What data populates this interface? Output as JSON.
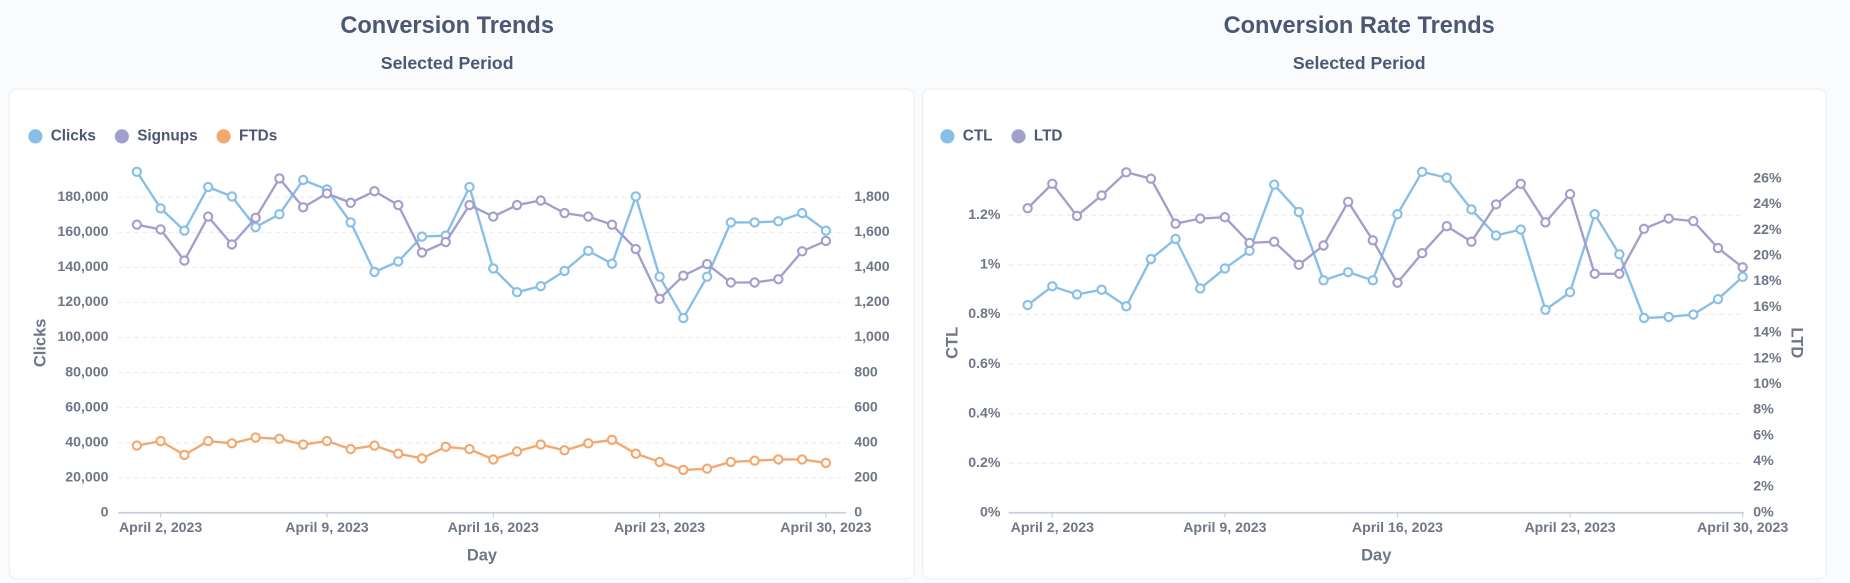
{
  "chart_data": [
    {
      "type": "line",
      "title": "Conversion Trends",
      "subtitle": "Selected Period",
      "xlabel": "Day",
      "ylabel": "Clicks",
      "x": [
        "2023-04-01",
        "2023-04-02",
        "2023-04-03",
        "2023-04-04",
        "2023-04-05",
        "2023-04-06",
        "2023-04-07",
        "2023-04-08",
        "2023-04-09",
        "2023-04-10",
        "2023-04-11",
        "2023-04-12",
        "2023-04-13",
        "2023-04-14",
        "2023-04-15",
        "2023-04-16",
        "2023-04-17",
        "2023-04-18",
        "2023-04-19",
        "2023-04-20",
        "2023-04-21",
        "2023-04-22",
        "2023-04-23",
        "2023-04-24",
        "2023-04-25",
        "2023-04-26",
        "2023-04-27",
        "2023-04-28",
        "2023-04-29",
        "2023-04-30"
      ],
      "xticks": [
        {
          "value": "2023-04-02",
          "label": "April 2, 2023"
        },
        {
          "value": "2023-04-09",
          "label": "April 9, 2023"
        },
        {
          "value": "2023-04-16",
          "label": "April 16, 2023"
        },
        {
          "value": "2023-04-23",
          "label": "April 23, 2023"
        },
        {
          "value": "2023-04-30",
          "label": "April 30, 2023"
        }
      ],
      "ylim": [
        0,
        200000
      ],
      "yticks": [
        0,
        {
          "value": 20000,
          "label": "20,000"
        },
        {
          "value": 40000,
          "label": "40,000"
        },
        {
          "value": 60000,
          "label": "60,000"
        },
        {
          "value": 80000,
          "label": "80,000"
        },
        {
          "value": 100000,
          "label": "100,000"
        },
        {
          "value": 120000,
          "label": "120,000"
        },
        {
          "value": 140000,
          "label": "140,000"
        },
        {
          "value": 160000,
          "label": "160,000"
        },
        {
          "value": 180000,
          "label": "180,000"
        }
      ],
      "y2lim": [
        0,
        2000
      ],
      "y2ticks": [
        0,
        200,
        400,
        600,
        800,
        {
          "value": 1000,
          "label": "1,000"
        },
        {
          "value": 1200,
          "label": "1,200"
        },
        {
          "value": 1400,
          "label": "1,400"
        },
        {
          "value": 1600,
          "label": "1,600"
        },
        {
          "value": 1800,
          "label": "1,800"
        }
      ],
      "grid": true,
      "series": [
        {
          "name": "Clicks",
          "color": "#88bfe8",
          "axis": "y",
          "values": [
            194600,
            173700,
            161000,
            185900,
            180500,
            163000,
            170400,
            189900,
            184500,
            165700,
            137400,
            143400,
            157600,
            158200,
            185900,
            139400,
            125900,
            129300,
            138000,
            149500,
            142100,
            180500,
            134700,
            111100,
            134700,
            165700,
            165700,
            166300,
            171000,
            161000
          ]
        },
        {
          "name": "Signups",
          "color": "#a29fcc",
          "axis": "y2",
          "values": [
            1644,
            1617,
            1439,
            1690,
            1531,
            1683,
            1908,
            1743,
            1822,
            1769,
            1835,
            1756,
            1485,
            1545,
            1756,
            1690,
            1756,
            1782,
            1710,
            1690,
            1644,
            1505,
            1221,
            1353,
            1419,
            1314,
            1314,
            1333,
            1492,
            1551
          ]
        },
        {
          "name": "FTDs",
          "color": "#f2a86f",
          "axis": "y2",
          "values": [
            383,
            409,
            330,
            409,
            396,
            429,
            422,
            389,
            409,
            363,
            383,
            337,
            310,
            376,
            363,
            304,
            350,
            389,
            356,
            396,
            416,
            337,
            290,
            244,
            251,
            290,
            297,
            304,
            304,
            284
          ]
        }
      ]
    },
    {
      "type": "line",
      "title": "Conversion Rate Trends",
      "subtitle": "Selected Period",
      "xlabel": "Day",
      "ylabel": "CTL",
      "y2label": "LTD",
      "x": [
        "2023-04-01",
        "2023-04-02",
        "2023-04-03",
        "2023-04-04",
        "2023-04-05",
        "2023-04-06",
        "2023-04-07",
        "2023-04-08",
        "2023-04-09",
        "2023-04-10",
        "2023-04-11",
        "2023-04-12",
        "2023-04-13",
        "2023-04-14",
        "2023-04-15",
        "2023-04-16",
        "2023-04-17",
        "2023-04-18",
        "2023-04-19",
        "2023-04-20",
        "2023-04-21",
        "2023-04-22",
        "2023-04-23",
        "2023-04-24",
        "2023-04-25",
        "2023-04-26",
        "2023-04-27",
        "2023-04-28",
        "2023-04-29",
        "2023-04-30"
      ],
      "xticks": [
        {
          "value": "2023-04-02",
          "label": "April 2, 2023"
        },
        {
          "value": "2023-04-09",
          "label": "April 9, 2023"
        },
        {
          "value": "2023-04-16",
          "label": "April 16, 2023"
        },
        {
          "value": "2023-04-23",
          "label": "April 23, 2023"
        },
        {
          "value": "2023-04-30",
          "label": "April 30, 2023"
        }
      ],
      "ylim": [
        0,
        1.4
      ],
      "yticks": [
        {
          "value": 0,
          "label": "0%"
        },
        {
          "value": 0.2,
          "label": "0.2%"
        },
        {
          "value": 0.4,
          "label": "0.4%"
        },
        {
          "value": 0.6,
          "label": "0.6%"
        },
        {
          "value": 0.8,
          "label": "0.8%"
        },
        {
          "value": 1,
          "label": "1%"
        },
        {
          "value": 1.2,
          "label": "1.2%"
        }
      ],
      "y2lim": [
        0,
        27
      ],
      "y2ticks": [
        {
          "value": 0,
          "label": "0%"
        },
        {
          "value": 2,
          "label": "2%"
        },
        {
          "value": 4,
          "label": "4%"
        },
        {
          "value": 6,
          "label": "6%"
        },
        {
          "value": 8,
          "label": "8%"
        },
        {
          "value": 10,
          "label": "10%"
        },
        {
          "value": 12,
          "label": "12%"
        },
        {
          "value": 14,
          "label": "14%"
        },
        {
          "value": 16,
          "label": "16%"
        },
        {
          "value": 18,
          "label": "18%"
        },
        {
          "value": 20,
          "label": "20%"
        },
        {
          "value": 22,
          "label": "22%"
        },
        {
          "value": 24,
          "label": "24%"
        },
        {
          "value": 26,
          "label": "26%"
        }
      ],
      "grid": true,
      "series": [
        {
          "name": "CTL",
          "color": "#88bfe8",
          "axis": "y",
          "values": [
            0.838,
            0.914,
            0.881,
            0.9,
            0.833,
            1.024,
            1.105,
            0.905,
            0.986,
            1.057,
            1.324,
            1.214,
            0.938,
            0.971,
            0.938,
            1.205,
            1.376,
            1.352,
            1.224,
            1.119,
            1.143,
            0.819,
            0.89,
            1.205,
            1.043,
            0.786,
            0.79,
            0.8,
            0.862,
            0.952
          ]
        },
        {
          "name": "LTD",
          "color": "#a29fcc",
          "axis": "y2",
          "values": [
            23.7,
            25.6,
            23.1,
            24.7,
            26.5,
            26.0,
            22.5,
            22.9,
            23.0,
            21.0,
            21.1,
            19.3,
            20.8,
            24.2,
            21.2,
            17.9,
            20.2,
            22.3,
            21.1,
            24.0,
            25.6,
            22.6,
            24.8,
            18.6,
            18.6,
            22.1,
            22.9,
            22.7,
            20.6,
            19.1
          ]
        }
      ]
    }
  ]
}
